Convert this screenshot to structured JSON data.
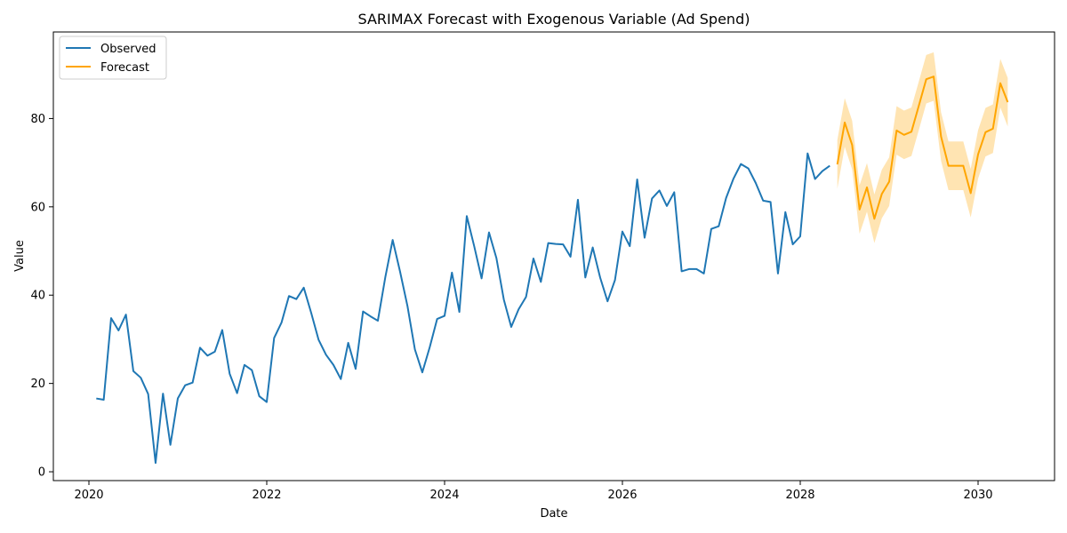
{
  "chart_data": {
    "type": "line",
    "title": "SARIMAX Forecast with Exogenous Variable (Ad Spend)",
    "xlabel": "Date",
    "ylabel": "Value",
    "xlim": [
      2019.6,
      2030.86
    ],
    "ylim": [
      -2,
      99.6
    ],
    "x_ticks": [
      2020,
      2022,
      2024,
      2026,
      2028,
      2030
    ],
    "x_tick_labels": [
      "2020",
      "2022",
      "2024",
      "2026",
      "2028",
      "2030"
    ],
    "y_ticks": [
      0,
      20,
      40,
      60,
      80
    ],
    "y_tick_labels": [
      "0",
      "20",
      "40",
      "60",
      "80"
    ],
    "legend_position": "top-left",
    "series": [
      {
        "name": "Observed",
        "color": "#1f77b4",
        "x_start": 2020.083,
        "x_step": 0.08333,
        "values": [
          16.6,
          16.3,
          34.8,
          32.0,
          35.6,
          22.8,
          21.3,
          17.6,
          2.0,
          17.7,
          6.1,
          16.6,
          19.6,
          20.2,
          28.1,
          26.3,
          27.2,
          32.1,
          22.2,
          17.8,
          24.2,
          23.0,
          17.1,
          15.8,
          30.3,
          33.8,
          39.8,
          39.1,
          41.7,
          36.0,
          29.9,
          26.5,
          24.2,
          21.0,
          29.2,
          23.3,
          36.3,
          35.2,
          34.2,
          44.0,
          52.5,
          45.3,
          37.5,
          27.7,
          22.5,
          28.2,
          34.6,
          35.3,
          45.1,
          36.2,
          57.9,
          51.1,
          43.8,
          54.2,
          48.4,
          39.0,
          32.8,
          36.8,
          39.6,
          48.3,
          43.0,
          51.8,
          51.6,
          51.5,
          48.7,
          61.6,
          44.0,
          50.8,
          44.0,
          38.6,
          43.4,
          54.4,
          51.1,
          66.2,
          53.0,
          61.9,
          63.7,
          60.2,
          63.3,
          45.4,
          45.9,
          45.9,
          44.9,
          55.0,
          55.6,
          62.0,
          66.4,
          69.7,
          68.7,
          65.4,
          61.4,
          61.1,
          44.9,
          58.8,
          51.5,
          53.3,
          72.1,
          66.3,
          68.1,
          69.3
        ]
      },
      {
        "name": "Forecast",
        "color": "#ffa500",
        "band_color": "#ffa500",
        "x_start": 2028.417,
        "x_step": 0.08333,
        "values": [
          69.6,
          79.1,
          74.0,
          59.4,
          64.4,
          57.3,
          62.9,
          65.7,
          77.3,
          76.3,
          77.0,
          82.9,
          88.9,
          89.5,
          75.9,
          69.3,
          69.3,
          69.3,
          63.1,
          71.9,
          76.9,
          77.7,
          88.0,
          83.7
        ],
        "lower": [
          64.1,
          73.6,
          68.5,
          53.9,
          58.9,
          51.8,
          57.4,
          60.2,
          71.8,
          70.8,
          71.5,
          77.4,
          83.4,
          84.0,
          70.4,
          63.8,
          63.8,
          63.8,
          57.6,
          66.4,
          71.4,
          72.2,
          82.5,
          78.2
        ],
        "upper": [
          75.1,
          84.6,
          79.5,
          64.9,
          69.9,
          62.8,
          68.4,
          71.2,
          82.8,
          81.8,
          82.5,
          88.4,
          94.4,
          95.0,
          81.4,
          74.8,
          74.8,
          74.8,
          68.6,
          77.4,
          82.4,
          83.2,
          93.5,
          89.2
        ]
      }
    ]
  }
}
